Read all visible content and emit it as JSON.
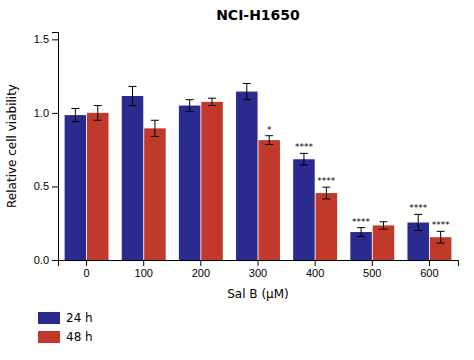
{
  "chart_data": {
    "type": "bar",
    "title": "NCI-H1650",
    "xlabel": "Sal B (μM)",
    "ylabel": "Relative cell viability",
    "categories": [
      0,
      100,
      200,
      300,
      400,
      500,
      600
    ],
    "series": [
      {
        "name": "24 h",
        "color": "#2b2b8f",
        "values": [
          0.985,
          1.115,
          1.05,
          1.145,
          0.685,
          0.19,
          0.255
        ],
        "errors": [
          0.045,
          0.065,
          0.04,
          0.055,
          0.04,
          0.03,
          0.055
        ],
        "annotations": [
          null,
          null,
          null,
          null,
          "****",
          "****",
          "****"
        ]
      },
      {
        "name": "48 h",
        "color": "#c0392b",
        "values": [
          1.0,
          0.895,
          1.075,
          0.815,
          0.455,
          0.235,
          0.155
        ],
        "errors": [
          0.05,
          0.055,
          0.025,
          0.03,
          0.04,
          0.025,
          0.04
        ],
        "annotations": [
          null,
          null,
          null,
          "*",
          "****",
          null,
          "****"
        ]
      }
    ],
    "ylim": [
      0.0,
      1.55
    ],
    "yticks": [
      {
        "value": 0,
        "label": "0.0"
      },
      {
        "value": 0.5,
        "label": "0.5"
      },
      {
        "value": 1,
        "label": "1.0"
      },
      {
        "value": 1.5,
        "label": "1.5"
      }
    ],
    "grid": false,
    "legend": "bottom"
  }
}
